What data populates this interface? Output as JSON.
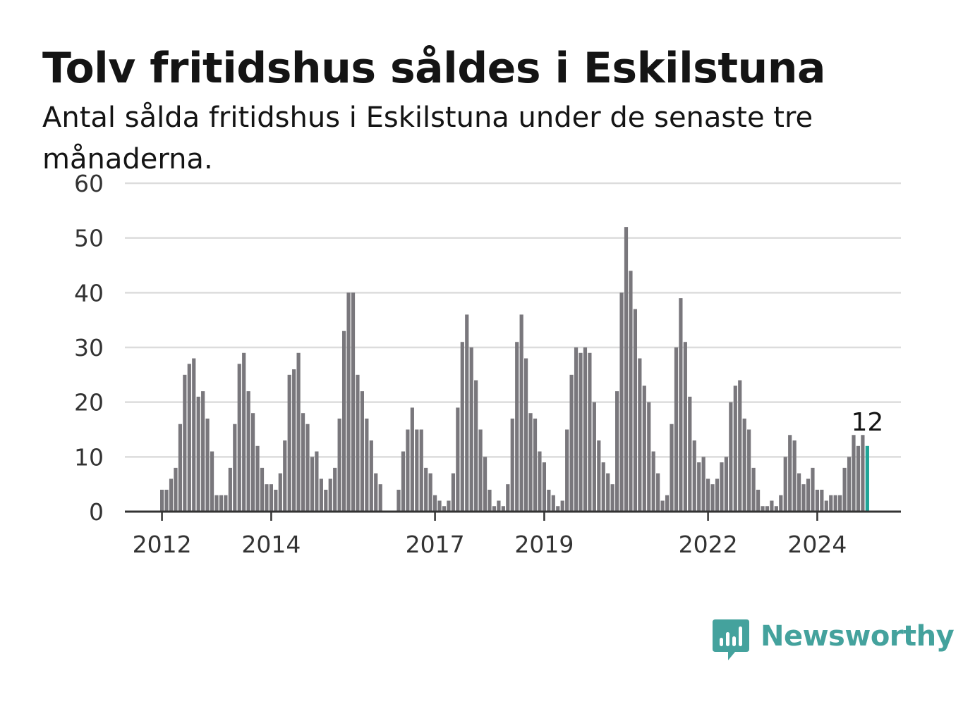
{
  "title": "Tolv fritidshus såldes i Eskilstuna",
  "subtitle": "Antal sålda fritidshus i Eskilstuna under de senaste tre månaderna.",
  "brand": {
    "name": "Newsworthy",
    "icon": "newsworthy-logo-icon",
    "color": "#44a29d"
  },
  "colors": {
    "bar": "#79777c",
    "highlight": "#20a497",
    "grid": "#dcdcdc",
    "axis": "#333333",
    "text": "#141414"
  },
  "chart_data": {
    "type": "bar",
    "title": "Tolv fritidshus såldes i Eskilstuna",
    "xlabel": "",
    "ylabel": "",
    "ylim": [
      0,
      60
    ],
    "yticks": [
      0,
      10,
      20,
      30,
      40,
      50,
      60
    ],
    "xticks": [
      {
        "label": "2012",
        "index": 0
      },
      {
        "label": "2014",
        "index": 24
      },
      {
        "label": "2017",
        "index": 60
      },
      {
        "label": "2019",
        "index": 84
      },
      {
        "label": "2022",
        "index": 120
      },
      {
        "label": "2024",
        "index": 144
      }
    ],
    "x_start": "2012-01",
    "grid": true,
    "values": [
      4,
      4,
      6,
      8,
      16,
      25,
      27,
      28,
      21,
      22,
      17,
      11,
      3,
      3,
      3,
      8,
      16,
      27,
      29,
      22,
      18,
      12,
      8,
      5,
      5,
      4,
      7,
      13,
      25,
      26,
      29,
      18,
      16,
      10,
      11,
      6,
      4,
      6,
      8,
      17,
      33,
      40,
      40,
      25,
      22,
      17,
      13,
      7,
      5,
      0,
      0,
      0,
      4,
      11,
      15,
      19,
      15,
      15,
      8,
      7,
      3,
      2,
      1,
      2,
      7,
      19,
      31,
      36,
      30,
      24,
      15,
      10,
      4,
      1,
      2,
      1,
      5,
      17,
      31,
      36,
      28,
      18,
      17,
      11,
      9,
      4,
      3,
      1,
      2,
      15,
      25,
      30,
      29,
      30,
      29,
      20,
      13,
      9,
      7,
      5,
      22,
      40,
      52,
      44,
      37,
      28,
      23,
      20,
      11,
      7,
      2,
      3,
      16,
      30,
      39,
      31,
      21,
      13,
      9,
      10,
      6,
      5,
      6,
      9,
      10,
      20,
      23,
      24,
      17,
      15,
      8,
      4,
      1,
      1,
      2,
      1,
      3,
      10,
      14,
      13,
      7,
      5,
      6,
      8,
      4,
      4,
      2,
      3,
      3,
      3,
      8,
      10,
      14,
      12,
      14,
      12
    ],
    "highlight_index": 155,
    "annotation": {
      "index": 155,
      "text": "12"
    }
  }
}
